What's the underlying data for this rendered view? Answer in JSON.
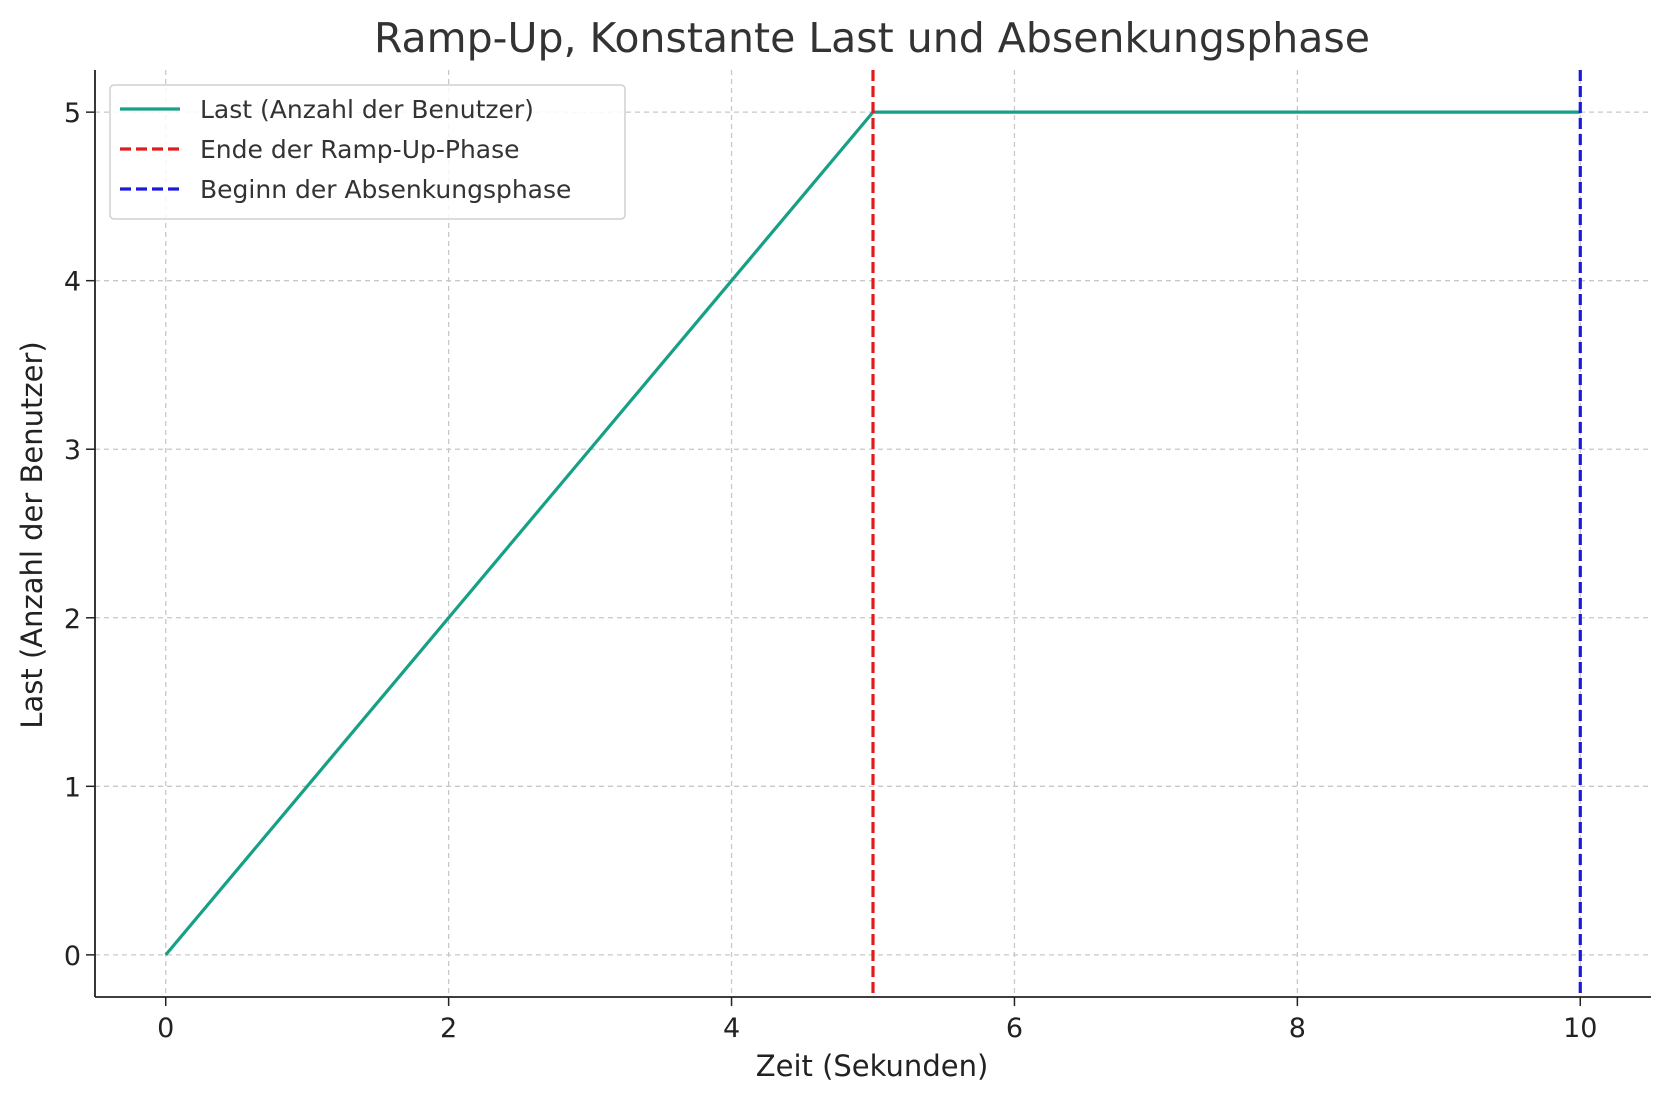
{
  "chart_data": {
    "type": "line",
    "title": "Ramp-Up, Konstante Last und Absenkungsphase",
    "xlabel": "Zeit (Sekunden)",
    "ylabel": "Last (Anzahl der Benutzer)",
    "xlim": [
      -0.5,
      10.5
    ],
    "ylim": [
      -0.25,
      5.25
    ],
    "xticks": [
      0,
      2,
      4,
      6,
      8,
      10
    ],
    "yticks": [
      0,
      1,
      2,
      3,
      4,
      5
    ],
    "grid": true,
    "legend_position": "top-left",
    "series": [
      {
        "name": "Last (Anzahl der Benutzer)",
        "style": "solid",
        "color": "#16a085",
        "x": [
          0,
          1,
          2,
          3,
          4,
          4.9,
          5,
          6,
          7,
          8,
          9,
          10
        ],
        "y": [
          0,
          1,
          2,
          3,
          4,
          4.9,
          5,
          5,
          5,
          5,
          5,
          5
        ]
      }
    ],
    "vlines": [
      {
        "name": "Ende der Ramp-Up-Phase",
        "x": 5,
        "color": "#e31a1c",
        "style": "dashed"
      },
      {
        "name": "Beginn der Absenkungsphase",
        "x": 10,
        "color": "#1a1adb",
        "style": "dashed"
      }
    ]
  }
}
